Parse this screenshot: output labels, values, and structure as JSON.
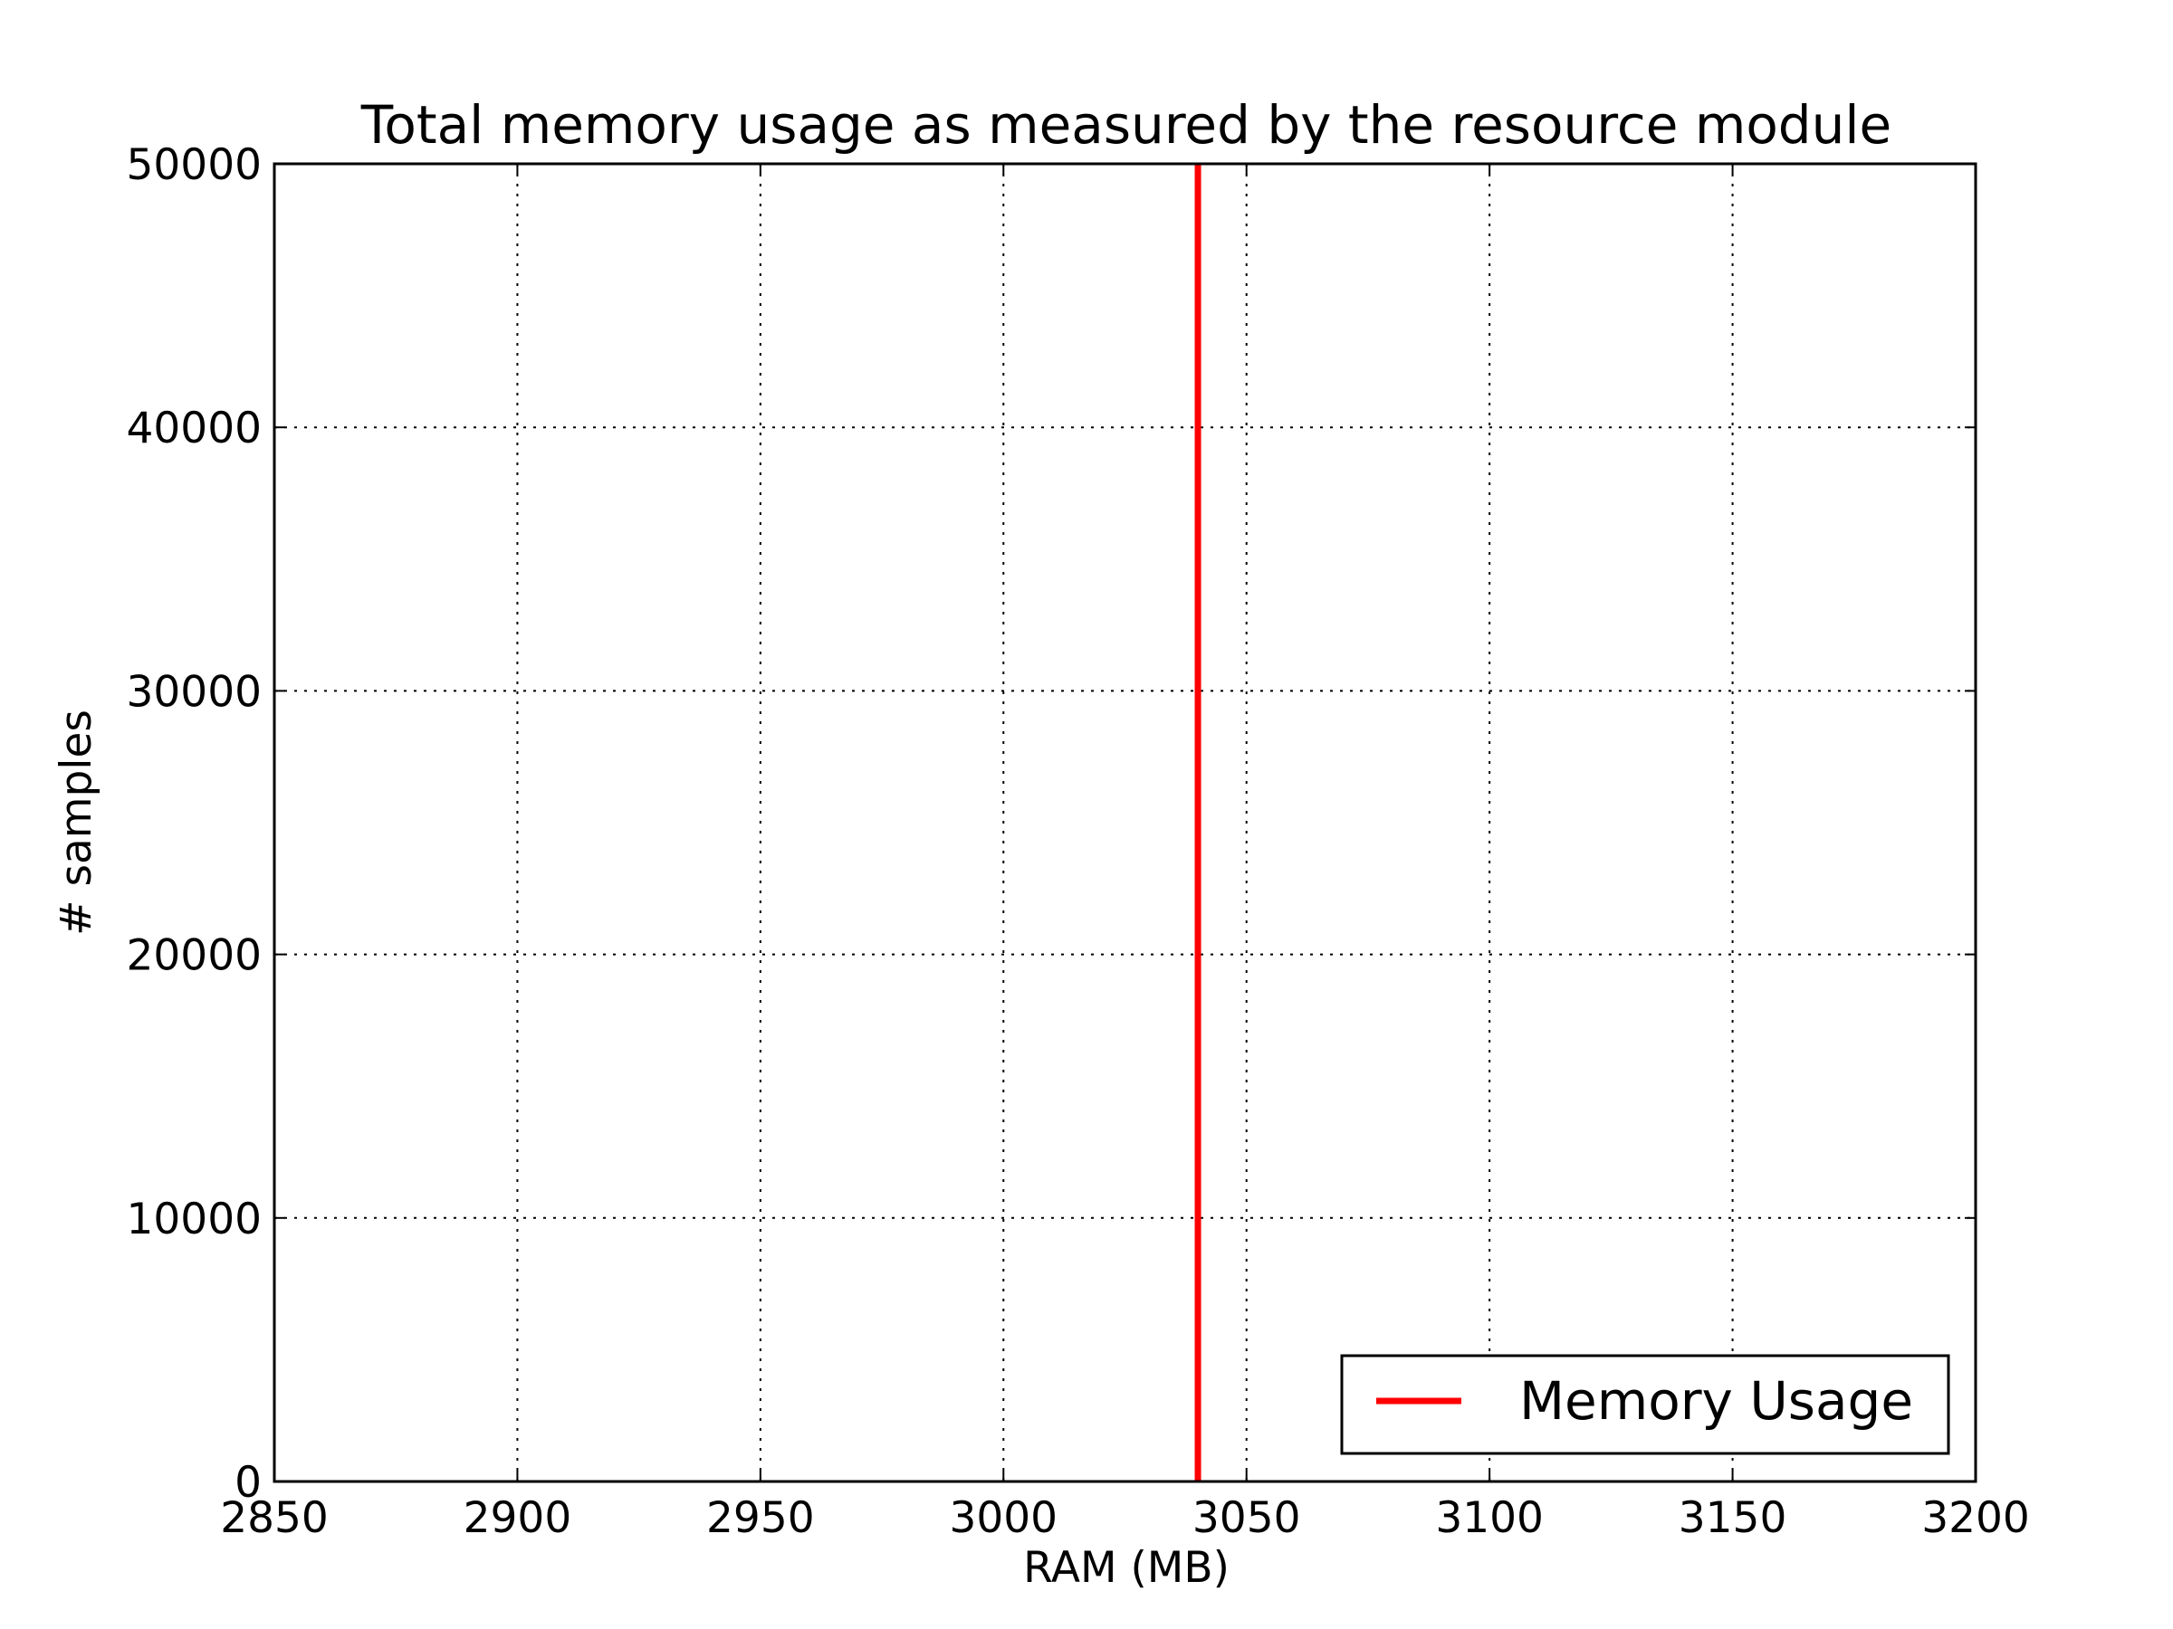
{
  "chart_data": {
    "type": "line",
    "title": "Total memory usage as measured by the resource module",
    "xlabel": "RAM (MB)",
    "ylabel": "# samples",
    "xlim": [
      2850,
      3200
    ],
    "ylim": [
      0,
      50000
    ],
    "x_ticks": [
      "2850",
      "2900",
      "2950",
      "3000",
      "3050",
      "3100",
      "3150",
      "3200"
    ],
    "y_ticks": [
      "0",
      "10000",
      "20000",
      "30000",
      "40000",
      "50000"
    ],
    "grid": true,
    "legend_position": "lower-right",
    "series": [
      {
        "name": "Memory Usage",
        "color": "#ff0000",
        "x": [
          3040,
          3040
        ],
        "y": [
          0,
          50000
        ]
      }
    ]
  }
}
